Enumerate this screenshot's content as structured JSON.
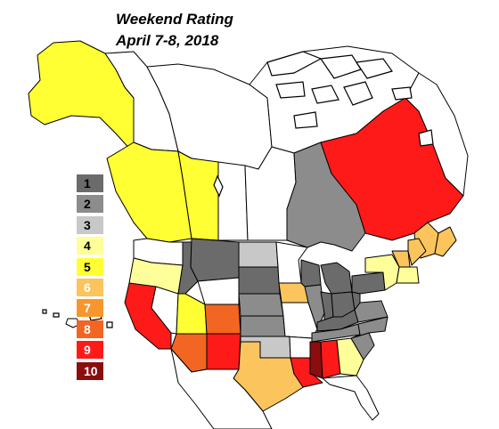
{
  "title": {
    "line1": "Weekend Rating",
    "line2": "April  7-8, 2018"
  },
  "colors": {
    "border": "#000000",
    "water": "#ffffff",
    "unrated": "#ffffff"
  },
  "legend": [
    {
      "label": "1",
      "color": "#6b6b6b",
      "text_color": "#000000"
    },
    {
      "label": "2",
      "color": "#8c8c8c",
      "text_color": "#000000"
    },
    {
      "label": "3",
      "color": "#c8c8c8",
      "text_color": "#000000"
    },
    {
      "label": "4",
      "color": "#ffff9a",
      "text_color": "#000000"
    },
    {
      "label": "5",
      "color": "#ffff33",
      "text_color": "#000000"
    },
    {
      "label": "6",
      "color": "#fcc45c",
      "text_color": "#ffffff"
    },
    {
      "label": "7",
      "color": "#f7962d",
      "text_color": "#ffffff"
    },
    {
      "label": "8",
      "color": "#f26522",
      "text_color": "#ffffff"
    },
    {
      "label": "9",
      "color": "#ff1a1a",
      "text_color": "#ffffff"
    },
    {
      "label": "10",
      "color": "#8b0d0d",
      "text_color": "#ffffff"
    }
  ],
  "regions": [
    {
      "name": "alaska",
      "rating": 5
    },
    {
      "name": "yukon",
      "rating": 0
    },
    {
      "name": "northwest-territories",
      "rating": 0
    },
    {
      "name": "nunavut",
      "rating": 0
    },
    {
      "name": "british-columbia",
      "rating": 5
    },
    {
      "name": "alberta",
      "rating": 5
    },
    {
      "name": "saskatchewan",
      "rating": 0
    },
    {
      "name": "manitoba",
      "rating": 0
    },
    {
      "name": "ontario",
      "rating": 2
    },
    {
      "name": "quebec",
      "rating": 9
    },
    {
      "name": "labrador",
      "rating": 0
    },
    {
      "name": "new-brunswick",
      "rating": 6
    },
    {
      "name": "nova-scotia",
      "rating": 6
    },
    {
      "name": "washington",
      "rating": 0
    },
    {
      "name": "oregon",
      "rating": 4
    },
    {
      "name": "california",
      "rating": 9
    },
    {
      "name": "nevada",
      "rating": 0
    },
    {
      "name": "idaho",
      "rating": 1
    },
    {
      "name": "montana",
      "rating": 1
    },
    {
      "name": "wyoming",
      "rating": 0
    },
    {
      "name": "utah",
      "rating": 5
    },
    {
      "name": "arizona",
      "rating": 8
    },
    {
      "name": "colorado",
      "rating": 8
    },
    {
      "name": "new-mexico",
      "rating": 9
    },
    {
      "name": "north-dakota",
      "rating": 3
    },
    {
      "name": "south-dakota",
      "rating": 1
    },
    {
      "name": "nebraska",
      "rating": 2
    },
    {
      "name": "kansas",
      "rating": 2
    },
    {
      "name": "oklahoma",
      "rating": 3
    },
    {
      "name": "texas",
      "rating": 6
    },
    {
      "name": "minnesota",
      "rating": 0
    },
    {
      "name": "iowa",
      "rating": 6
    },
    {
      "name": "missouri",
      "rating": 0
    },
    {
      "name": "arkansas",
      "rating": 0
    },
    {
      "name": "louisiana",
      "rating": 9
    },
    {
      "name": "wisconsin",
      "rating": 1
    },
    {
      "name": "illinois",
      "rating": 2
    },
    {
      "name": "michigan",
      "rating": 1
    },
    {
      "name": "indiana",
      "rating": 1
    },
    {
      "name": "ohio",
      "rating": 1
    },
    {
      "name": "kentucky",
      "rating": 1
    },
    {
      "name": "tennessee",
      "rating": 2
    },
    {
      "name": "mississippi",
      "rating": 10
    },
    {
      "name": "alabama",
      "rating": 9
    },
    {
      "name": "georgia",
      "rating": 4
    },
    {
      "name": "florida",
      "rating": 0
    },
    {
      "name": "south-carolina",
      "rating": 2
    },
    {
      "name": "north-carolina",
      "rating": 2
    },
    {
      "name": "virginia",
      "rating": 2
    },
    {
      "name": "west-virginia",
      "rating": 1
    },
    {
      "name": "pennsylvania",
      "rating": 1
    },
    {
      "name": "new-york",
      "rating": 4
    },
    {
      "name": "vermont-new-hampshire",
      "rating": 6
    },
    {
      "name": "maine",
      "rating": 6
    },
    {
      "name": "southern-new-england",
      "rating": 4
    },
    {
      "name": "mexico",
      "rating": 0
    },
    {
      "name": "hawaii",
      "rating": 0
    }
  ]
}
